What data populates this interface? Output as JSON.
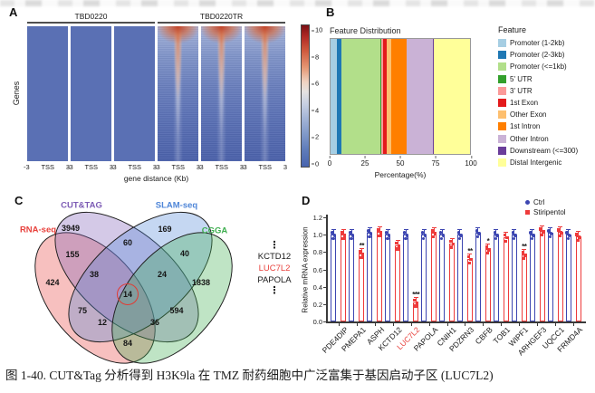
{
  "figure_caption": "图 1-40. CUT&Tag 分析得到 H3K9la 在 TMZ 耐药细胞中广泛富集于基因启动子区 (LUC7L2)",
  "panel_labels": {
    "a": "A",
    "b": "B",
    "c": "C",
    "d": "D"
  },
  "chart_data": [
    {
      "type": "heatmap",
      "panel": "A",
      "description": "H3K9la signal density around TSS; TBD0220TR lanes show stronger central enrichment",
      "sample_groups": [
        {
          "name": "TBD0220",
          "lanes": 3,
          "enrichment": "moderate"
        },
        {
          "name": "TBD0220TR",
          "lanes": 3,
          "enrichment": "strong"
        }
      ],
      "ylabel": "Genes",
      "xlabel": "gene distance (Kb)",
      "x_ticks": [
        "-3",
        "TSS",
        "3"
      ],
      "colorbar": {
        "min": 0,
        "max": 10,
        "ticks": [
          "10",
          "8",
          "6",
          "4",
          "2",
          "0"
        ]
      }
    },
    {
      "type": "bar",
      "subtype": "stacked_horizontal",
      "panel": "B",
      "title": "Feature Distribution",
      "xlabel": "Percentage(%)",
      "xlim": [
        0,
        100
      ],
      "x_ticks": [
        "0",
        "25",
        "50",
        "75",
        "100"
      ],
      "legend_title": "Feature",
      "segments": [
        {
          "label": "Promoter (1-2kb)",
          "value": 4.5,
          "color": "#A6CEE3"
        },
        {
          "label": "Promoter (2-3kb)",
          "value": 3.0,
          "color": "#1F78B4"
        },
        {
          "label": "Promoter (<=1kb)",
          "value": 28.5,
          "color": "#B2DF8A"
        },
        {
          "label": "5' UTR",
          "value": 0.6,
          "color": "#33A02C"
        },
        {
          "label": "3' UTR",
          "value": 1.2,
          "color": "#FB9A99"
        },
        {
          "label": "1st Exon",
          "value": 2.2,
          "color": "#E31A1C"
        },
        {
          "label": "Other Exon",
          "value": 3.5,
          "color": "#FDBF6F"
        },
        {
          "label": "1st Intron",
          "value": 11.0,
          "color": "#FF7F00"
        },
        {
          "label": "Other Intron",
          "value": 19.0,
          "color": "#CAB2D6"
        },
        {
          "label": "Downstream (<=300)",
          "value": 0.5,
          "color": "#6A3D9A"
        },
        {
          "label": "Distal Intergenic",
          "value": 26.0,
          "color": "#FFFF99"
        }
      ]
    },
    {
      "type": "venn",
      "panel": "C",
      "sets": [
        {
          "name": "RNA-seq",
          "color": "#e8413c"
        },
        {
          "name": "CUT&TAG",
          "color": "#7d5cb5"
        },
        {
          "name": "SLAM-seq",
          "color": "#4f86d8"
        },
        {
          "name": "CGGA",
          "color": "#3eae4f"
        }
      ],
      "regions": [
        {
          "sets": [
            "CUT&TAG"
          ],
          "count": "3949"
        },
        {
          "sets": [
            "SLAM-seq"
          ],
          "count": "169"
        },
        {
          "sets": [
            "RNA-seq"
          ],
          "count": "424"
        },
        {
          "sets": [
            "CGGA"
          ],
          "count": "1838"
        },
        {
          "sets": [
            "RNA-seq",
            "CUT&TAG"
          ],
          "count": "155"
        },
        {
          "sets": [
            "CUT&TAG",
            "SLAM-seq"
          ],
          "count": "60"
        },
        {
          "sets": [
            "SLAM-seq",
            "CGGA"
          ],
          "count": "40"
        },
        {
          "sets": [
            "RNA-seq",
            "CUT&TAG",
            "SLAM-seq"
          ],
          "count": "38"
        },
        {
          "sets": [
            "CUT&TAG",
            "SLAM-seq",
            "CGGA"
          ],
          "count": "24"
        },
        {
          "sets": [
            "RNA-seq",
            "SLAM-seq"
          ],
          "count": "75"
        },
        {
          "sets": [
            "CUT&TAG",
            "CGGA"
          ],
          "count": "594"
        },
        {
          "sets": [
            "RNA-seq",
            "SLAM-seq",
            "CGGA"
          ],
          "count": "12"
        },
        {
          "sets": [
            "RNA-seq",
            "CUT&TAG",
            "CGGA"
          ],
          "count": "36"
        },
        {
          "sets": [
            "RNA-seq",
            "CGGA"
          ],
          "count": "84"
        },
        {
          "sets": [
            "RNA-seq",
            "CUT&TAG",
            "SLAM-seq",
            "CGGA"
          ],
          "count": "14",
          "highlighted": true
        }
      ],
      "gene_list_callout": {
        "items": [
          "KCTD12",
          "LUC7L2",
          "PAPOLA"
        ],
        "highlighted": "LUC7L2",
        "ellipsis": "⋮"
      }
    },
    {
      "type": "bar",
      "subtype": "grouped_vertical",
      "panel": "D",
      "ylabel": "Relative mRNA expression",
      "ylim": [
        0,
        1.2
      ],
      "y_ticks": [
        "1.2",
        "1.0",
        "0.8",
        "0.6",
        "0.4",
        "0.2",
        "0.0"
      ],
      "categories": [
        "PDE4DIP",
        "PMEPA1",
        "ASPH",
        "KCTD12",
        "LUC7L2",
        "PAPOLA",
        "CNIH1",
        "PDZRN3",
        "CBFB",
        "TOB1",
        "WIPF1",
        "ARHGEF3",
        "UQCC1",
        "FRMD4A"
      ],
      "highlighted_category": "LUC7L2",
      "highlight_color": "#e8413c",
      "series": [
        {
          "name": "Ctrl",
          "color": "#3c46b1",
          "marker": "circle",
          "values": [
            1.0,
            1.0,
            1.02,
            1.0,
            1.0,
            1.0,
            1.0,
            1.0,
            1.02,
            1.0,
            1.0,
            1.0,
            1.02,
            1.0
          ]
        },
        {
          "name": "Stiripentol",
          "color": "#ee3b3b",
          "marker": "square",
          "values": [
            1.0,
            0.78,
            1.03,
            0.88,
            0.22,
            1.02,
            0.9,
            0.72,
            0.83,
            0.97,
            0.77,
            1.04,
            1.03,
            0.98
          ]
        }
      ],
      "significance": [
        "",
        "**",
        "",
        "",
        "***",
        "",
        "",
        "**",
        "*",
        "",
        "**",
        "",
        "",
        ""
      ]
    }
  ]
}
